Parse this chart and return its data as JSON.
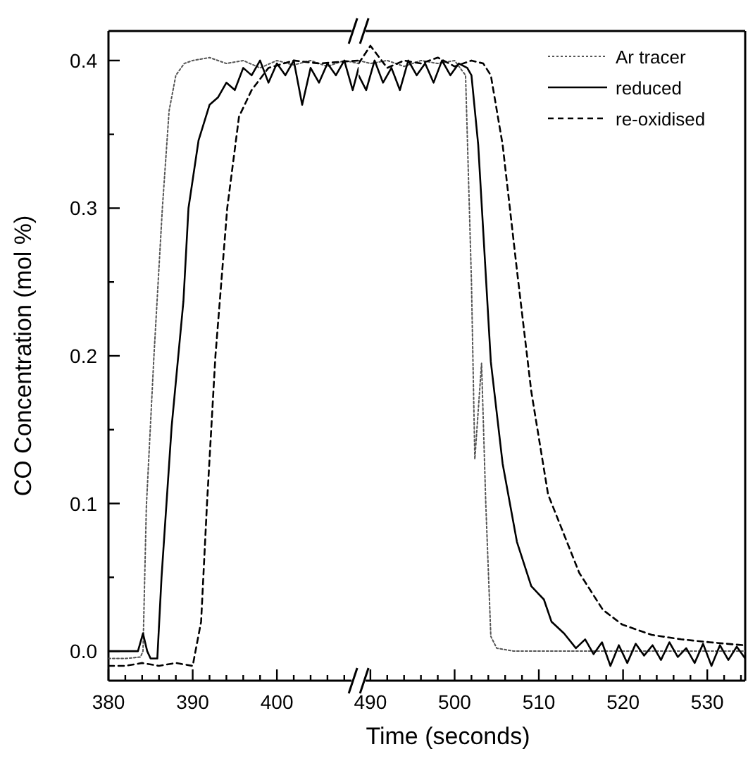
{
  "chart_data": [
    {
      "type": "line",
      "ylabel": "CO Concentration (mol %)",
      "xlim": [
        380,
        409.7
      ],
      "ylim": [
        -0.02,
        0.42
      ],
      "xticks": [
        380,
        {
          "value": 382,
          "label": null
        },
        {
          "value": 384,
          "label": null
        },
        {
          "value": 386,
          "label": null
        },
        {
          "value": 388,
          "label": null
        },
        390,
        {
          "value": 392,
          "label": null
        },
        {
          "value": 394,
          "label": null
        },
        {
          "value": 396,
          "label": null
        },
        {
          "value": 398,
          "label": null
        },
        400,
        {
          "value": 402,
          "label": null
        },
        {
          "value": 404,
          "label": null
        },
        {
          "value": 406,
          "label": null
        },
        {
          "value": 408,
          "label": null
        }
      ],
      "yticks": [
        {
          "value": 0,
          "label": "0.0"
        },
        {
          "value": 0.05,
          "label": null
        },
        0.1,
        {
          "value": 0.15,
          "label": null
        },
        0.2,
        {
          "value": 0.25,
          "label": null
        },
        0.3,
        {
          "value": 0.35,
          "label": null
        },
        0.4
      ],
      "series": [
        {
          "color": "#555555",
          "line_style": "dotted",
          "x": [
            380,
            382,
            383.8,
            384.1,
            384.5,
            385.4,
            386.4,
            387.2,
            388,
            389,
            390,
            392,
            394,
            396,
            398,
            400,
            402,
            404,
            406,
            408,
            409.7
          ],
          "values": [
            -0.005,
            -0.005,
            -0.004,
            0.0,
            0.098,
            0.2,
            0.3,
            0.366,
            0.39,
            0.398,
            0.4,
            0.402,
            0.398,
            0.4,
            0.395,
            0.4,
            0.397,
            0.4,
            0.396,
            0.4,
            0.398
          ]
        },
        {
          "color": "#000000",
          "line_style": "solid",
          "x": [
            380,
            381,
            383.5,
            384.1,
            384.6,
            385,
            385.8,
            386.3,
            387.5,
            388.9,
            389.5,
            390.7,
            392,
            393,
            394,
            395,
            396,
            397,
            398,
            399,
            400,
            401,
            402,
            403,
            404,
            405,
            406,
            407,
            408,
            409,
            409.7
          ],
          "values": [
            0.0,
            0.0,
            0.0,
            0.012,
            0.0,
            -0.005,
            -0.005,
            0.05,
            0.152,
            0.237,
            0.3,
            0.346,
            0.37,
            0.375,
            0.385,
            0.38,
            0.395,
            0.39,
            0.4,
            0.385,
            0.398,
            0.39,
            0.4,
            0.37,
            0.395,
            0.385,
            0.398,
            0.39,
            0.4,
            0.38,
            0.395
          ]
        },
        {
          "color": "#000000",
          "line_style": "dashed",
          "x": [
            380,
            382,
            384,
            386,
            388,
            390,
            391,
            391.7,
            392.7,
            394.1,
            395.5,
            397,
            399,
            402,
            405,
            409.7
          ],
          "values": [
            -0.01,
            -0.01,
            -0.008,
            -0.01,
            -0.008,
            -0.01,
            0.02,
            0.1,
            0.2,
            0.3,
            0.362,
            0.38,
            0.395,
            0.4,
            0.398,
            0.4
          ]
        }
      ]
    },
    {
      "type": "line",
      "xlabel": "Time (seconds)",
      "tick_labels": "x",
      "legend": "top right",
      "xlim": [
        488.6,
        534.5
      ],
      "ylim": [
        -0.02,
        0.42
      ],
      "xticks": [
        490,
        {
          "value": 492,
          "label": null
        },
        {
          "value": 494,
          "label": null
        },
        {
          "value": 496,
          "label": null
        },
        {
          "value": 498,
          "label": null
        },
        500,
        {
          "value": 502,
          "label": null
        },
        {
          "value": 504,
          "label": null
        },
        {
          "value": 506,
          "label": null
        },
        {
          "value": 508,
          "label": null
        },
        510,
        {
          "value": 512,
          "label": null
        },
        {
          "value": 514,
          "label": null
        },
        {
          "value": 516,
          "label": null
        },
        {
          "value": 518,
          "label": null
        },
        520,
        {
          "value": 522,
          "label": null
        },
        {
          "value": 524,
          "label": null
        },
        {
          "value": 526,
          "label": null
        },
        {
          "value": 528,
          "label": null
        },
        530,
        {
          "value": 532,
          "label": null
        },
        {
          "value": 534,
          "label": null
        }
      ],
      "series": [
        {
          "name": "Ar tracer",
          "color": "#555555",
          "line_style": "dotted",
          "x": [
            488.6,
            490,
            492,
            494,
            496,
            498,
            500,
            501.3,
            502,
            502.4,
            503.2,
            503.7,
            504.3,
            505,
            507,
            510,
            515,
            520,
            525,
            530,
            534.5
          ],
          "values": [
            0.4,
            0.398,
            0.4,
            0.396,
            0.4,
            0.398,
            0.4,
            0.39,
            0.25,
            0.13,
            0.195,
            0.1,
            0.01,
            0.002,
            0.0,
            0.0,
            0.0,
            0.0,
            0.0,
            0.0,
            0.0
          ]
        },
        {
          "name": "reduced",
          "color": "#000000",
          "line_style": "solid",
          "x": [
            488.6,
            489.5,
            490.5,
            491.5,
            492.5,
            493.5,
            494.5,
            495.5,
            496.5,
            497.5,
            498.5,
            499.5,
            500.5,
            501.5,
            502,
            502.8,
            504.3,
            505.7,
            507.4,
            509.1,
            510.6,
            511.5,
            513,
            514.4,
            515.5,
            516.5,
            517.5,
            518.5,
            519.5,
            520.5,
            521.5,
            522.5,
            523.5,
            524.5,
            525.5,
            526.5,
            527.5,
            528.5,
            529.5,
            530.5,
            531.5,
            532.5,
            533.5,
            534.5
          ],
          "values": [
            0.39,
            0.38,
            0.4,
            0.385,
            0.395,
            0.38,
            0.4,
            0.39,
            0.398,
            0.385,
            0.4,
            0.39,
            0.398,
            0.395,
            0.39,
            0.343,
            0.196,
            0.127,
            0.074,
            0.044,
            0.035,
            0.02,
            0.012,
            0.002,
            0.008,
            -0.002,
            0.006,
            -0.01,
            0.004,
            -0.008,
            0.005,
            -0.003,
            0.004,
            -0.006,
            0.006,
            -0.004,
            0.002,
            -0.008,
            0.005,
            -0.01,
            0.004,
            -0.006,
            0.003,
            -0.005
          ]
        },
        {
          "name": "re-oxidised",
          "color": "#000000",
          "line_style": "dashed",
          "x": [
            488.6,
            490,
            492,
            494,
            496,
            498,
            500,
            502,
            503.4,
            504.3,
            505.7,
            507.4,
            509.1,
            511.1,
            512.5,
            514.8,
            517.6,
            519.9,
            523.4,
            526.9,
            530.3,
            534.3
          ],
          "values": [
            0.398,
            0.41,
            0.395,
            0.4,
            0.398,
            0.402,
            0.396,
            0.4,
            0.398,
            0.39,
            0.343,
            0.258,
            0.176,
            0.106,
            0.086,
            0.053,
            0.028,
            0.018,
            0.011,
            0.008,
            0.006,
            0.004
          ]
        }
      ]
    }
  ]
}
